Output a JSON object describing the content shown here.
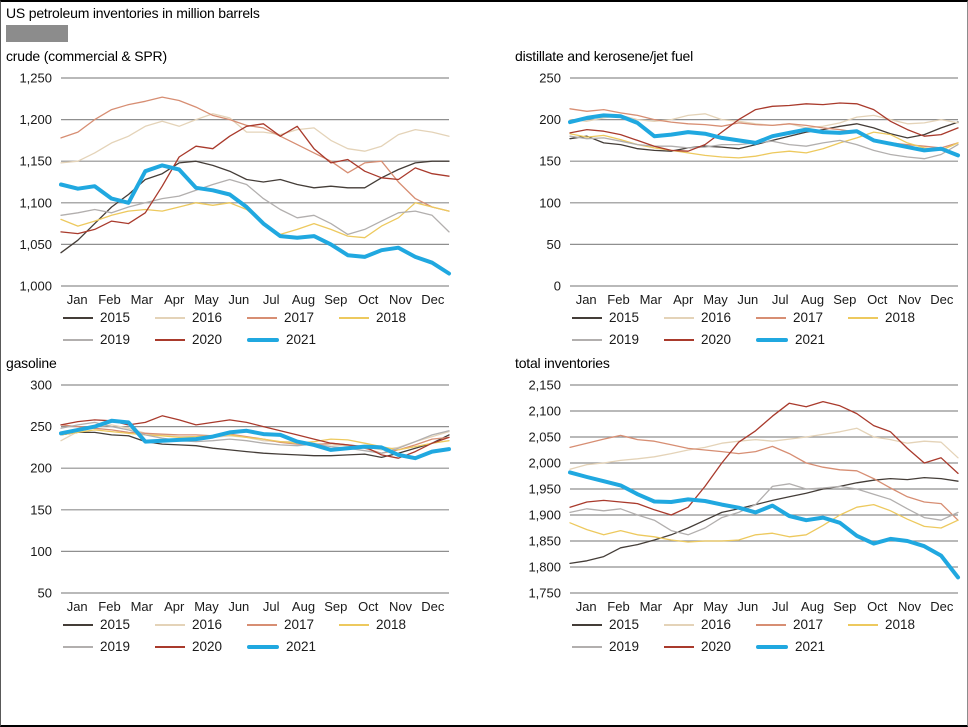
{
  "header": {
    "title": "US petroleum inventories in million barrels"
  },
  "chart_meta": {
    "type": "line",
    "legend_position": "bottom",
    "grid": true,
    "grid_color": "#8f8f8f",
    "axis_text_color": "#1a1a1a",
    "highlight_series": "2021",
    "highlight_color": "#20a8e0",
    "colors": {
      "2015": "#443d38",
      "2016": "#e4d3b8",
      "2017": "#d78e73",
      "2018": "#edc95e",
      "2019": "#b2afae",
      "2020": "#a93a2c",
      "2021": "#20a8e0"
    },
    "months": [
      "Jan",
      "Feb",
      "Mar",
      "Apr",
      "May",
      "Jun",
      "Jul",
      "Aug",
      "Sep",
      "Oct",
      "Nov",
      "Dec"
    ],
    "x_note": "two samples per month, Jan through Dec"
  },
  "chart_data": [
    {
      "title": "crude (commercial & SPR)",
      "type": "line",
      "ylim": [
        1000,
        1250
      ],
      "yticks": [
        1000,
        1050,
        1100,
        1150,
        1200,
        1250
      ],
      "series": [
        {
          "name": "2015",
          "values": [
            1040,
            1055,
            1075,
            1095,
            1110,
            1128,
            1135,
            1148,
            1150,
            1145,
            1138,
            1128,
            1125,
            1128,
            1122,
            1118,
            1120,
            1118,
            1118,
            1130,
            1140,
            1148,
            1150,
            1150
          ]
        },
        {
          "name": "2016",
          "values": [
            1148,
            1150,
            1160,
            1172,
            1180,
            1192,
            1198,
            1192,
            1200,
            1207,
            1202,
            1185,
            1185,
            1182,
            1188,
            1190,
            1175,
            1165,
            1162,
            1168,
            1182,
            1188,
            1185,
            1180
          ]
        },
        {
          "name": "2017",
          "values": [
            1178,
            1185,
            1200,
            1212,
            1218,
            1222,
            1227,
            1223,
            1215,
            1205,
            1200,
            1193,
            1190,
            1180,
            1170,
            1160,
            1150,
            1136,
            1148,
            1150,
            1125,
            1105,
            1095,
            1090
          ]
        },
        {
          "name": "2018",
          "values": [
            1080,
            1072,
            1078,
            1085,
            1090,
            1092,
            1090,
            1095,
            1100,
            1097,
            1100,
            1092,
            1075,
            1062,
            1068,
            1075,
            1068,
            1060,
            1058,
            1072,
            1082,
            1100,
            1095,
            1090
          ]
        },
        {
          "name": "2019",
          "values": [
            1085,
            1088,
            1092,
            1088,
            1095,
            1100,
            1105,
            1108,
            1115,
            1122,
            1128,
            1122,
            1105,
            1092,
            1082,
            1085,
            1075,
            1062,
            1068,
            1078,
            1088,
            1090,
            1085,
            1065
          ]
        },
        {
          "name": "2020",
          "values": [
            1065,
            1063,
            1068,
            1078,
            1075,
            1088,
            1120,
            1155,
            1168,
            1165,
            1180,
            1192,
            1195,
            1180,
            1192,
            1165,
            1148,
            1152,
            1138,
            1130,
            1128,
            1142,
            1135,
            1132
          ]
        },
        {
          "name": "2021",
          "values": [
            1122,
            1117,
            1120,
            1105,
            1100,
            1138,
            1145,
            1140,
            1118,
            1115,
            1110,
            1095,
            1075,
            1060,
            1058,
            1060,
            1050,
            1037,
            1035,
            1043,
            1046,
            1035,
            1028,
            1015
          ]
        }
      ]
    },
    {
      "title": "distillate and kerosene/jet fuel",
      "type": "line",
      "ylim": [
        0,
        250
      ],
      "yticks": [
        0,
        50,
        100,
        150,
        200,
        250
      ],
      "series": [
        {
          "name": "2015",
          "values": [
            177,
            180,
            172,
            170,
            165,
            163,
            162,
            166,
            168,
            167,
            165,
            170,
            175,
            180,
            185,
            188,
            192,
            195,
            190,
            183,
            178,
            182,
            190,
            197
          ]
        },
        {
          "name": "2016",
          "values": [
            200,
            198,
            202,
            205,
            200,
            198,
            200,
            205,
            207,
            200,
            198,
            195,
            193,
            195,
            190,
            192,
            196,
            203,
            205,
            200,
            195,
            196,
            200,
            196
          ]
        },
        {
          "name": "2017",
          "values": [
            213,
            210,
            212,
            208,
            205,
            200,
            197,
            195,
            194,
            192,
            196,
            194,
            193,
            195,
            193,
            190,
            188,
            185,
            175,
            172,
            170,
            168,
            166,
            172
          ]
        },
        {
          "name": "2018",
          "values": [
            183,
            179,
            181,
            176,
            170,
            166,
            163,
            160,
            157,
            155,
            154,
            156,
            160,
            162,
            160,
            165,
            172,
            178,
            185,
            182,
            172,
            166,
            163,
            172
          ]
        },
        {
          "name": "2019",
          "values": [
            180,
            177,
            178,
            174,
            170,
            168,
            168,
            166,
            167,
            170,
            170,
            172,
            174,
            170,
            168,
            172,
            175,
            170,
            163,
            158,
            155,
            153,
            158,
            170
          ]
        },
        {
          "name": "2020",
          "values": [
            184,
            188,
            186,
            182,
            175,
            168,
            163,
            162,
            170,
            185,
            200,
            212,
            216,
            217,
            219,
            218,
            220,
            219,
            212,
            198,
            188,
            180,
            182,
            190
          ]
        },
        {
          "name": "2021",
          "values": [
            197,
            202,
            205,
            204,
            196,
            180,
            182,
            185,
            183,
            178,
            175,
            172,
            180,
            184,
            188,
            185,
            184,
            186,
            175,
            171,
            167,
            163,
            165,
            157
          ]
        }
      ]
    },
    {
      "title": "gasoline",
      "type": "line",
      "ylim": [
        50,
        300
      ],
      "yticks": [
        50,
        100,
        150,
        200,
        250,
        300
      ],
      "series": [
        {
          "name": "2015",
          "values": [
            240,
            243,
            243,
            240,
            239,
            232,
            229,
            228,
            227,
            224,
            222,
            220,
            218,
            217,
            216,
            215,
            215,
            216,
            217,
            213,
            218,
            224,
            230,
            240
          ]
        },
        {
          "name": "2016",
          "values": [
            233,
            244,
            250,
            252,
            248,
            242,
            240,
            238,
            238,
            237,
            239,
            237,
            233,
            232,
            232,
            230,
            228,
            227,
            226,
            222,
            225,
            232,
            238,
            244
          ]
        },
        {
          "name": "2017",
          "values": [
            252,
            250,
            248,
            246,
            243,
            242,
            241,
            240,
            240,
            239,
            241,
            238,
            235,
            231,
            229,
            228,
            230,
            228,
            224,
            218,
            222,
            228,
            235,
            237
          ]
        },
        {
          "name": "2018",
          "values": [
            240,
            243,
            246,
            244,
            242,
            240,
            239,
            237,
            238,
            239,
            240,
            237,
            235,
            232,
            230,
            232,
            235,
            234,
            230,
            226,
            222,
            226,
            230,
            233
          ]
        },
        {
          "name": "2019",
          "values": [
            248,
            252,
            255,
            250,
            246,
            240,
            236,
            233,
            232,
            233,
            235,
            233,
            230,
            228,
            227,
            229,
            226,
            224,
            221,
            218,
            224,
            232,
            240,
            245
          ]
        },
        {
          "name": "2020",
          "values": [
            252,
            256,
            258,
            257,
            252,
            255,
            263,
            258,
            252,
            255,
            258,
            255,
            250,
            245,
            240,
            235,
            230,
            228,
            226,
            216,
            212,
            220,
            230,
            237
          ]
        },
        {
          "name": "2021",
          "values": [
            242,
            246,
            250,
            257,
            255,
            232,
            233,
            234,
            235,
            238,
            243,
            245,
            241,
            240,
            232,
            228,
            222,
            224,
            226,
            225,
            216,
            212,
            220,
            223
          ]
        }
      ]
    },
    {
      "title": "total inventories",
      "type": "line",
      "ylim": [
        1750,
        2150
      ],
      "yticks": [
        1750,
        1800,
        1850,
        1900,
        1950,
        2000,
        2050,
        2100,
        2150
      ],
      "series": [
        {
          "name": "2015",
          "values": [
            1807,
            1812,
            1820,
            1837,
            1843,
            1852,
            1862,
            1875,
            1890,
            1905,
            1912,
            1920,
            1928,
            1935,
            1942,
            1950,
            1955,
            1962,
            1967,
            1970,
            1968,
            1972,
            1970,
            1965
          ]
        },
        {
          "name": "2016",
          "values": [
            1988,
            1997,
            2000,
            2005,
            2008,
            2012,
            2018,
            2025,
            2030,
            2038,
            2042,
            2045,
            2042,
            2046,
            2050,
            2055,
            2060,
            2067,
            2050,
            2045,
            2038,
            2042,
            2040,
            2010
          ]
        },
        {
          "name": "2017",
          "values": [
            2030,
            2038,
            2046,
            2053,
            2045,
            2042,
            2035,
            2028,
            2025,
            2022,
            2018,
            2022,
            2032,
            2018,
            2000,
            1992,
            1987,
            1985,
            1970,
            1952,
            1935,
            1925,
            1922,
            1890
          ]
        },
        {
          "name": "2018",
          "values": [
            1885,
            1872,
            1862,
            1870,
            1862,
            1858,
            1852,
            1848,
            1850,
            1850,
            1852,
            1862,
            1865,
            1858,
            1862,
            1880,
            1900,
            1915,
            1920,
            1908,
            1892,
            1878,
            1875,
            1890
          ]
        },
        {
          "name": "2019",
          "values": [
            1905,
            1912,
            1908,
            1912,
            1900,
            1890,
            1870,
            1862,
            1875,
            1895,
            1905,
            1920,
            1955,
            1960,
            1950,
            1952,
            1955,
            1950,
            1940,
            1930,
            1912,
            1895,
            1890,
            1905
          ]
        },
        {
          "name": "2020",
          "values": [
            1915,
            1925,
            1928,
            1925,
            1922,
            1910,
            1900,
            1915,
            1955,
            2000,
            2040,
            2062,
            2090,
            2115,
            2108,
            2118,
            2110,
            2095,
            2072,
            2060,
            2028,
            2000,
            2010,
            1980
          ]
        },
        {
          "name": "2021",
          "values": [
            1982,
            1973,
            1965,
            1957,
            1940,
            1926,
            1925,
            1930,
            1927,
            1920,
            1914,
            1905,
            1918,
            1898,
            1890,
            1895,
            1885,
            1860,
            1845,
            1854,
            1850,
            1840,
            1822,
            1780
          ]
        }
      ]
    }
  ]
}
